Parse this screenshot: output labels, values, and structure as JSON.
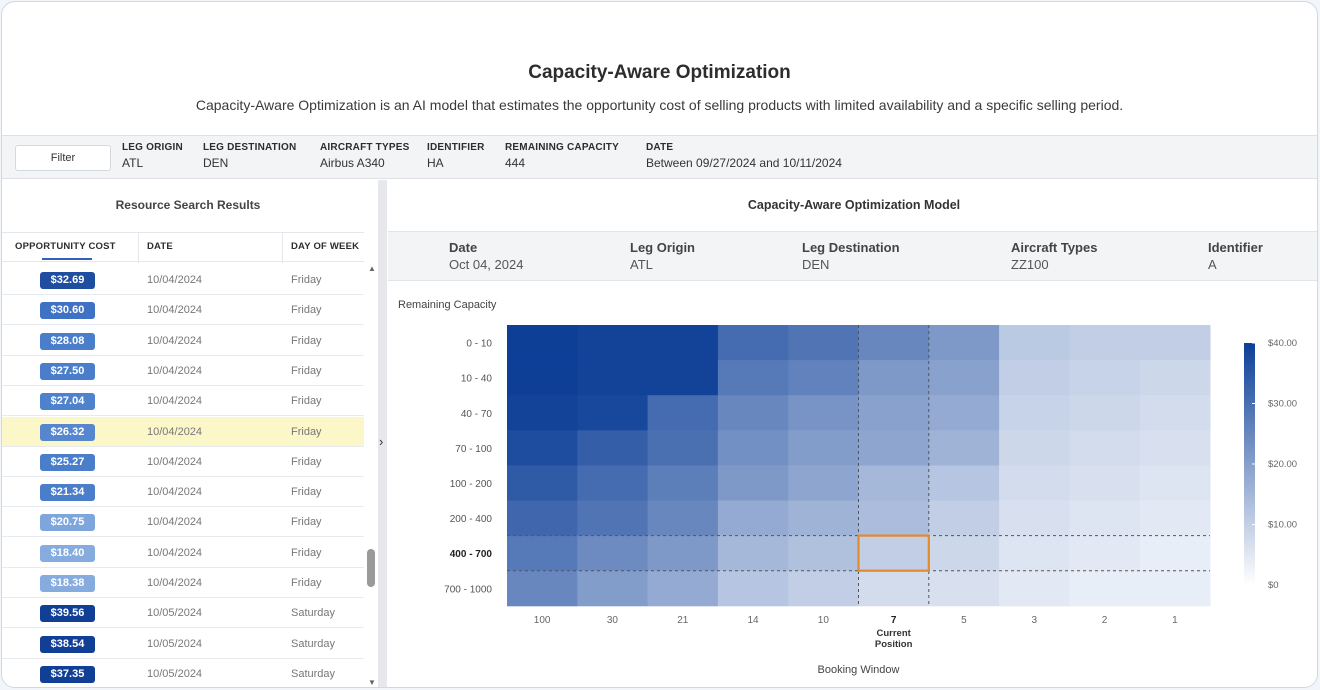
{
  "header": {
    "title": "Capacity-Aware Optimization",
    "subtitle": "Capacity-Aware Optimization is an AI model that estimates the opportunity cost of selling products with limited availability and a specific selling period."
  },
  "filterbar": {
    "filter_label": "Filter",
    "fields": [
      {
        "key": "LEG ORIGIN",
        "value": "ATL"
      },
      {
        "key": "LEG DESTINATION",
        "value": "DEN"
      },
      {
        "key": "AIRCRAFT TYPES",
        "value": "Airbus A340"
      },
      {
        "key": "IDENTIFIER",
        "value": "HA"
      },
      {
        "key": "REMAINING CAPACITY",
        "value": "444"
      },
      {
        "key": "DATE",
        "value": "Between 09/27/2024 and 10/11/2024"
      }
    ]
  },
  "results": {
    "title": "Resource Search Results",
    "columns": [
      "OPPORTUNITY COST",
      "DATE",
      "DAY OF WEEK"
    ],
    "rows": [
      {
        "cost": "$32.69",
        "date": "10/04/2024",
        "dow": "Friday",
        "color": "#1f4ea1"
      },
      {
        "cost": "$30.60",
        "date": "10/04/2024",
        "dow": "Friday",
        "color": "#3f72c4"
      },
      {
        "cost": "$28.08",
        "date": "10/04/2024",
        "dow": "Friday",
        "color": "#4a7ecb"
      },
      {
        "cost": "$27.50",
        "date": "10/04/2024",
        "dow": "Friday",
        "color": "#4a7ecb"
      },
      {
        "cost": "$27.04",
        "date": "10/04/2024",
        "dow": "Friday",
        "color": "#4f82cd"
      },
      {
        "cost": "$26.32",
        "date": "10/04/2024",
        "dow": "Friday",
        "color": "#5586ce",
        "selected": true
      },
      {
        "cost": "$25.27",
        "date": "10/04/2024",
        "dow": "Friday",
        "color": "#4a7ecb"
      },
      {
        "cost": "$21.34",
        "date": "10/04/2024",
        "dow": "Friday",
        "color": "#4a7ecb"
      },
      {
        "cost": "$20.75",
        "date": "10/04/2024",
        "dow": "Friday",
        "color": "#7fa6dc"
      },
      {
        "cost": "$18.40",
        "date": "10/04/2024",
        "dow": "Friday",
        "color": "#86abdf"
      },
      {
        "cost": "$18.38",
        "date": "10/04/2024",
        "dow": "Friday",
        "color": "#86abdf"
      },
      {
        "cost": "$39.56",
        "date": "10/05/2024",
        "dow": "Saturday",
        "color": "#123f96"
      },
      {
        "cost": "$38.54",
        "date": "10/05/2024",
        "dow": "Saturday",
        "color": "#123f96"
      },
      {
        "cost": "$37.35",
        "date": "10/05/2024",
        "dow": "Saturday",
        "color": "#123f96"
      }
    ]
  },
  "model": {
    "title": "Capacity-Aware Optimization Model",
    "details": [
      {
        "key": "Date",
        "value": "Oct 04, 2024"
      },
      {
        "key": "Leg Origin",
        "value": "ATL"
      },
      {
        "key": "Leg Destination",
        "value": "DEN"
      },
      {
        "key": "Aircraft Types",
        "value": "ZZ100"
      },
      {
        "key": "Identifier",
        "value": "A"
      }
    ]
  },
  "chart_data": {
    "type": "heatmap",
    "ylabel": "Remaining Capacity",
    "xlabel": "Booking Window",
    "x_categories": [
      "100",
      "30",
      "21",
      "14",
      "10",
      "7",
      "5",
      "3",
      "2",
      "1"
    ],
    "y_categories": [
      "0 - 10",
      "10 - 40",
      "40 - 70",
      "70 - 100",
      "100 - 200",
      "200 - 400",
      "400 - 700",
      "700 - 1000"
    ],
    "current_position_label": "Current\nPosition",
    "current_position_x": "7",
    "highlight_row": "400 - 700",
    "colorbar_ticks": [
      "$40.00",
      "$30.00",
      "$20.00",
      "$10.00",
      "$0"
    ],
    "color_range": [
      0,
      40
    ],
    "color_low": "#eef2f9",
    "color_high": "#0d3f97",
    "highlight_color": "#e38a2a",
    "values": [
      [
        40,
        39,
        39,
        30,
        28,
        24,
        20,
        9,
        8,
        8
      ],
      [
        40,
        39,
        39,
        27,
        25,
        20,
        18,
        8,
        7,
        6
      ],
      [
        39,
        38,
        30,
        24,
        21,
        18,
        16,
        7,
        6,
        5
      ],
      [
        37,
        33,
        29,
        22,
        19,
        17,
        14,
        6,
        5,
        4
      ],
      [
        34,
        30,
        26,
        20,
        17,
        13,
        10,
        5,
        4,
        3
      ],
      [
        31,
        28,
        24,
        16,
        14,
        12,
        8,
        4,
        3,
        2
      ],
      [
        27,
        23,
        20,
        13,
        11,
        8,
        6,
        3,
        2,
        1
      ],
      [
        24,
        19,
        16,
        10,
        8,
        5,
        4,
        2,
        1,
        1
      ]
    ]
  }
}
